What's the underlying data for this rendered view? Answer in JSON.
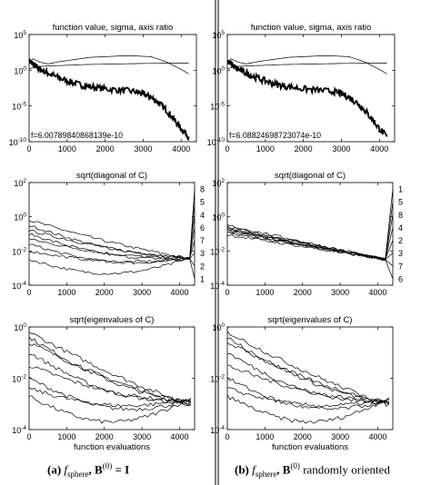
{
  "captions": {
    "a": {
      "tag": "(a)",
      "f": "f",
      "sub": "sphere",
      "rest": ", B",
      "sup": "(0)",
      "tail": " = I"
    },
    "b": {
      "tag": "(b)",
      "f": "f",
      "sub": "sphere",
      "rest": ", B",
      "sup": "(0)",
      "tail": " randomly oriented"
    }
  },
  "chart_data": [
    {
      "id": "a1",
      "type": "line",
      "scale": "log",
      "title": "function value, sigma, axis ratio",
      "xlim": [
        0,
        4400
      ],
      "ylim": [
        -10,
        5
      ],
      "xticks": [
        "0",
        "1000",
        "2000",
        "3000",
        "4000"
      ],
      "yticks": [
        {
          "exp": "5",
          "v": 5
        },
        {
          "exp": "0",
          "v": 0
        },
        {
          "exp": "-5",
          "v": -5
        },
        {
          "exp": "-10",
          "v": -10
        }
      ],
      "annotation": "f=6.00789840868139e-10",
      "series": [
        {
          "style": "thick",
          "x": [
            0,
            100,
            200,
            300,
            500,
            700,
            1000,
            1300,
            1600,
            2000,
            2400,
            2800,
            3000,
            3200,
            3400,
            3600,
            3800,
            4000,
            4200
          ],
          "y": [
            1.3,
            0.9,
            0.4,
            0.1,
            -0.4,
            -0.9,
            -1.5,
            -2.0,
            -2.3,
            -2.6,
            -2.8,
            -3.0,
            -3.3,
            -3.8,
            -4.5,
            -5.5,
            -6.8,
            -8.2,
            -9.3
          ],
          "noise": 0.45
        },
        {
          "style": "thin",
          "x": [
            0,
            100,
            300,
            500,
            800,
            1200,
            1600,
            2000,
            2400,
            2800,
            3200,
            3600,
            4000,
            4200
          ],
          "y": [
            1.0,
            1.6,
            1.1,
            0.9,
            1.2,
            1.5,
            1.8,
            1.9,
            2.0,
            2.0,
            1.9,
            1.2,
            0.1,
            -0.5
          ],
          "noise": 0
        },
        {
          "style": "thin",
          "x": [
            0,
            200,
            500,
            1000,
            1500,
            2000,
            2500,
            3000,
            3500,
            4000,
            4200
          ],
          "y": [
            0.2,
            0.5,
            0.6,
            0.7,
            0.8,
            0.85,
            0.9,
            0.95,
            0.98,
            1.0,
            1.0
          ],
          "noise": 0
        }
      ]
    },
    {
      "id": "a2",
      "type": "line",
      "scale": "log",
      "title": "sqrt(diagonal of C)",
      "xlim": [
        0,
        4400
      ],
      "ylim": [
        -4,
        2
      ],
      "xticks": [
        "0",
        "1000",
        "2000",
        "3000",
        "4000"
      ],
      "yticks": [
        {
          "exp": "2",
          "v": 2
        },
        {
          "exp": "0",
          "v": 0
        },
        {
          "exp": "-2",
          "v": -2
        },
        {
          "exp": "-4",
          "v": -4
        }
      ],
      "labels": [
        "8",
        "5",
        "4",
        "6",
        "7",
        "3",
        "2",
        "1"
      ],
      "fan": {
        "x0": 4270,
        "y0": -2.45,
        "x1": 4400
      },
      "series": [
        {
          "start": -0.2,
          "c": -1.0
        },
        {
          "start": -0.5,
          "c": -1.2
        },
        {
          "start": -0.8,
          "c": -1.4
        },
        {
          "start": -1.0,
          "c": -1.6
        },
        {
          "start": -1.3,
          "c": -1.8
        },
        {
          "start": -1.6,
          "c": -2.0
        },
        {
          "start": -2.0,
          "c": -2.5
        },
        {
          "start": -2.5,
          "c": -2.8
        }
      ]
    },
    {
      "id": "a3",
      "type": "line",
      "scale": "log",
      "title": "sqrt(eigenvalues of C)",
      "xlabel": "function evaluations",
      "xlim": [
        0,
        4400
      ],
      "ylim": [
        -4,
        0
      ],
      "xticks": [
        "0",
        "1000",
        "2000",
        "3000",
        "4000"
      ],
      "yticks": [
        {
          "exp": "0",
          "v": 0
        },
        {
          "exp": "-2",
          "v": -2
        },
        {
          "exp": "-4",
          "v": -4
        }
      ],
      "series": [
        {
          "start": -0.2,
          "c": -1.0
        },
        {
          "start": -0.4,
          "c": -1.3
        },
        {
          "start": -0.6,
          "c": -1.6
        },
        {
          "start": -1.0,
          "c": -1.8
        },
        {
          "start": -1.5,
          "c": -2.1
        },
        {
          "start": -2.0,
          "c": -2.4
        },
        {
          "start": -2.4,
          "c": -2.9
        },
        {
          "start": -2.7,
          "c": -3.2
        }
      ]
    },
    {
      "id": "b1",
      "type": "line",
      "scale": "log",
      "title": "function value, sigma, axis ratio",
      "xlim": [
        0,
        4400
      ],
      "ylim": [
        -10,
        5
      ],
      "xticks": [
        "0",
        "1000",
        "2000",
        "3000",
        "4000"
      ],
      "yticks": [
        {
          "exp": "5",
          "v": 5
        },
        {
          "exp": "0",
          "v": 0
        },
        {
          "exp": "-5",
          "v": -5
        },
        {
          "exp": "-10",
          "v": -10
        }
      ],
      "annotation": "f=6.08824698723074e-10",
      "series": [
        {
          "style": "thick",
          "x": [
            0,
            100,
            200,
            300,
            500,
            700,
            1000,
            1300,
            1600,
            2000,
            2400,
            2800,
            3000,
            3200,
            3400,
            3600,
            3800,
            4000,
            4200
          ],
          "y": [
            1.3,
            0.9,
            0.4,
            0.1,
            -0.4,
            -0.9,
            -1.5,
            -2.0,
            -2.3,
            -2.6,
            -2.8,
            -3.0,
            -3.3,
            -3.8,
            -4.5,
            -5.5,
            -6.8,
            -8.2,
            -9.3
          ],
          "noise": 0.45
        },
        {
          "style": "thin",
          "x": [
            0,
            100,
            300,
            500,
            800,
            1200,
            1600,
            2000,
            2400,
            2800,
            3200,
            3600,
            4000,
            4200
          ],
          "y": [
            1.0,
            1.6,
            1.1,
            0.9,
            1.2,
            1.5,
            1.8,
            1.9,
            2.0,
            2.0,
            1.9,
            1.2,
            0.1,
            -0.5
          ],
          "noise": 0
        },
        {
          "style": "thin",
          "x": [
            0,
            200,
            500,
            1000,
            1500,
            2000,
            2500,
            3000,
            3500,
            4000,
            4200
          ],
          "y": [
            0.2,
            0.5,
            0.6,
            0.7,
            0.8,
            0.85,
            0.9,
            0.95,
            0.98,
            1.0,
            1.0
          ],
          "noise": 0
        }
      ]
    },
    {
      "id": "b2",
      "type": "line",
      "scale": "log",
      "title": "sqrt(diagonal of C)",
      "xlim": [
        0,
        4400
      ],
      "ylim": [
        -4,
        2
      ],
      "xticks": [
        "0",
        "1000",
        "2000",
        "3000",
        "4000"
      ],
      "yticks": [
        {
          "exp": "2",
          "v": 2
        },
        {
          "exp": "0",
          "v": 0
        },
        {
          "exp": "-2",
          "v": -2
        },
        {
          "exp": "-4",
          "v": -4
        }
      ],
      "labels": [
        "1",
        "5",
        "8",
        "4",
        "2",
        "3",
        "7",
        "6"
      ],
      "fan": {
        "x0": 4200,
        "y0": -2.5,
        "x1": 4400
      },
      "series": [
        {
          "start": -0.5,
          "c": 0.0
        },
        {
          "start": -0.6,
          "c": 0.0
        },
        {
          "start": -0.7,
          "c": 0.0
        },
        {
          "start": -0.75,
          "c": 0.0
        },
        {
          "start": -0.8,
          "c": 0.0
        },
        {
          "start": -0.85,
          "c": 0.0
        },
        {
          "start": -0.95,
          "c": 0.0
        },
        {
          "start": -1.05,
          "c": 0.0
        }
      ]
    },
    {
      "id": "b3",
      "type": "line",
      "scale": "log",
      "title": "sqrt(eigenvalues of C)",
      "xlabel": "function evaluations",
      "xlim": [
        0,
        4400
      ],
      "ylim": [
        -4,
        0
      ],
      "xticks": [
        "0",
        "1000",
        "2000",
        "3000",
        "4000"
      ],
      "yticks": [
        {
          "exp": "0",
          "v": 0
        },
        {
          "exp": "-2",
          "v": -2
        },
        {
          "exp": "-4",
          "v": -4
        }
      ],
      "series": [
        {
          "start": -0.2,
          "c": -1.0
        },
        {
          "start": -0.4,
          "c": -1.3
        },
        {
          "start": -0.6,
          "c": -1.6
        },
        {
          "start": -1.0,
          "c": -1.8
        },
        {
          "start": -1.5,
          "c": -2.1
        },
        {
          "start": -2.0,
          "c": -2.4
        },
        {
          "start": -2.4,
          "c": -2.9
        },
        {
          "start": -2.7,
          "c": -3.2
        }
      ]
    }
  ]
}
